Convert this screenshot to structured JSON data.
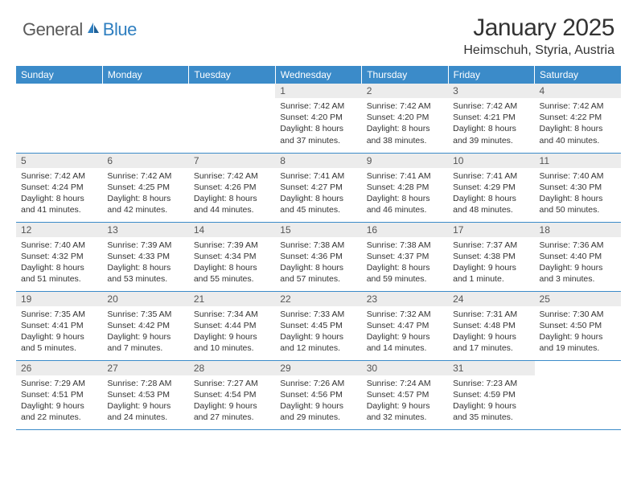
{
  "brand": {
    "part1": "General",
    "part2": "Blue"
  },
  "title": "January 2025",
  "location": "Heimschuh, Styria, Austria",
  "colors": {
    "header_bg": "#3b8bc9",
    "header_text": "#ffffff",
    "daynum_bg": "#ececec",
    "row_divider": "#3b8bc9",
    "brand_gray": "#5a5a5a",
    "brand_blue": "#2f7fc0"
  },
  "weekdays": [
    "Sunday",
    "Monday",
    "Tuesday",
    "Wednesday",
    "Thursday",
    "Friday",
    "Saturday"
  ],
  "weeks": [
    [
      null,
      null,
      null,
      {
        "n": "1",
        "sr": "7:42 AM",
        "ss": "4:20 PM",
        "dl": "8 hours and 37 minutes."
      },
      {
        "n": "2",
        "sr": "7:42 AM",
        "ss": "4:20 PM",
        "dl": "8 hours and 38 minutes."
      },
      {
        "n": "3",
        "sr": "7:42 AM",
        "ss": "4:21 PM",
        "dl": "8 hours and 39 minutes."
      },
      {
        "n": "4",
        "sr": "7:42 AM",
        "ss": "4:22 PM",
        "dl": "8 hours and 40 minutes."
      }
    ],
    [
      {
        "n": "5",
        "sr": "7:42 AM",
        "ss": "4:24 PM",
        "dl": "8 hours and 41 minutes."
      },
      {
        "n": "6",
        "sr": "7:42 AM",
        "ss": "4:25 PM",
        "dl": "8 hours and 42 minutes."
      },
      {
        "n": "7",
        "sr": "7:42 AM",
        "ss": "4:26 PM",
        "dl": "8 hours and 44 minutes."
      },
      {
        "n": "8",
        "sr": "7:41 AM",
        "ss": "4:27 PM",
        "dl": "8 hours and 45 minutes."
      },
      {
        "n": "9",
        "sr": "7:41 AM",
        "ss": "4:28 PM",
        "dl": "8 hours and 46 minutes."
      },
      {
        "n": "10",
        "sr": "7:41 AM",
        "ss": "4:29 PM",
        "dl": "8 hours and 48 minutes."
      },
      {
        "n": "11",
        "sr": "7:40 AM",
        "ss": "4:30 PM",
        "dl": "8 hours and 50 minutes."
      }
    ],
    [
      {
        "n": "12",
        "sr": "7:40 AM",
        "ss": "4:32 PM",
        "dl": "8 hours and 51 minutes."
      },
      {
        "n": "13",
        "sr": "7:39 AM",
        "ss": "4:33 PM",
        "dl": "8 hours and 53 minutes."
      },
      {
        "n": "14",
        "sr": "7:39 AM",
        "ss": "4:34 PM",
        "dl": "8 hours and 55 minutes."
      },
      {
        "n": "15",
        "sr": "7:38 AM",
        "ss": "4:36 PM",
        "dl": "8 hours and 57 minutes."
      },
      {
        "n": "16",
        "sr": "7:38 AM",
        "ss": "4:37 PM",
        "dl": "8 hours and 59 minutes."
      },
      {
        "n": "17",
        "sr": "7:37 AM",
        "ss": "4:38 PM",
        "dl": "9 hours and 1 minute."
      },
      {
        "n": "18",
        "sr": "7:36 AM",
        "ss": "4:40 PM",
        "dl": "9 hours and 3 minutes."
      }
    ],
    [
      {
        "n": "19",
        "sr": "7:35 AM",
        "ss": "4:41 PM",
        "dl": "9 hours and 5 minutes."
      },
      {
        "n": "20",
        "sr": "7:35 AM",
        "ss": "4:42 PM",
        "dl": "9 hours and 7 minutes."
      },
      {
        "n": "21",
        "sr": "7:34 AM",
        "ss": "4:44 PM",
        "dl": "9 hours and 10 minutes."
      },
      {
        "n": "22",
        "sr": "7:33 AM",
        "ss": "4:45 PM",
        "dl": "9 hours and 12 minutes."
      },
      {
        "n": "23",
        "sr": "7:32 AM",
        "ss": "4:47 PM",
        "dl": "9 hours and 14 minutes."
      },
      {
        "n": "24",
        "sr": "7:31 AM",
        "ss": "4:48 PM",
        "dl": "9 hours and 17 minutes."
      },
      {
        "n": "25",
        "sr": "7:30 AM",
        "ss": "4:50 PM",
        "dl": "9 hours and 19 minutes."
      }
    ],
    [
      {
        "n": "26",
        "sr": "7:29 AM",
        "ss": "4:51 PM",
        "dl": "9 hours and 22 minutes."
      },
      {
        "n": "27",
        "sr": "7:28 AM",
        "ss": "4:53 PM",
        "dl": "9 hours and 24 minutes."
      },
      {
        "n": "28",
        "sr": "7:27 AM",
        "ss": "4:54 PM",
        "dl": "9 hours and 27 minutes."
      },
      {
        "n": "29",
        "sr": "7:26 AM",
        "ss": "4:56 PM",
        "dl": "9 hours and 29 minutes."
      },
      {
        "n": "30",
        "sr": "7:24 AM",
        "ss": "4:57 PM",
        "dl": "9 hours and 32 minutes."
      },
      {
        "n": "31",
        "sr": "7:23 AM",
        "ss": "4:59 PM",
        "dl": "9 hours and 35 minutes."
      },
      null
    ]
  ],
  "labels": {
    "sunrise": "Sunrise:",
    "sunset": "Sunset:",
    "daylight": "Daylight:"
  }
}
